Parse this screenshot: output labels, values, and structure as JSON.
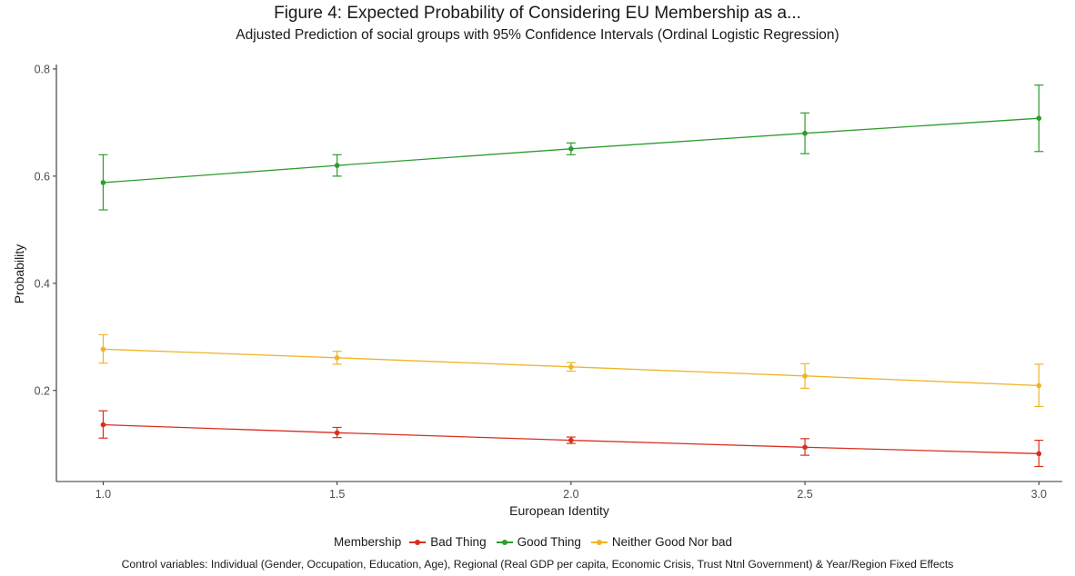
{
  "title": "Figure 4: Expected Probability of Considering EU Membership as a...",
  "subtitle": "Adjusted Prediction of social groups with 95% Confidence Intervals (Ordinal Logistic Regression)",
  "caption": "Control variables: Individual (Gender, Occupation, Education, Age), Regional (Real GDP per capita, Economic Crisis, Trust Ntnl Government) & Year/Region Fixed Effects",
  "legend": {
    "title": "Membership",
    "items": [
      {
        "label": "Bad Thing",
        "color": "#d7301f"
      },
      {
        "label": "Good Thing",
        "color": "#2e9c2e"
      },
      {
        "label": "Neither Good Nor bad",
        "color": "#f0b429"
      }
    ]
  },
  "chart_data": {
    "type": "line",
    "xlabel": "European Identity",
    "ylabel": "Probability",
    "x": [
      1.0,
      1.5,
      2.0,
      2.5,
      3.0
    ],
    "x_tick_labels": [
      "1.0",
      "1.5",
      "2.0",
      "2.5",
      "3.0"
    ],
    "y_ticks": [
      0.2,
      0.4,
      0.6,
      0.8
    ],
    "y_tick_labels": [
      "0.2",
      "0.4",
      "0.6",
      "0.8"
    ],
    "xlim": [
      0.9,
      3.05
    ],
    "ylim": [
      0.03,
      0.805
    ],
    "grid": false,
    "legend_position": "bottom",
    "series": [
      {
        "name": "Bad Thing",
        "color": "#d7301f",
        "values": [
          0.136,
          0.121,
          0.107,
          0.094,
          0.082
        ],
        "lower": [
          0.111,
          0.112,
          0.101,
          0.079,
          0.058
        ],
        "upper": [
          0.162,
          0.131,
          0.113,
          0.11,
          0.107
        ]
      },
      {
        "name": "Good Thing",
        "color": "#2e9c2e",
        "values": [
          0.588,
          0.62,
          0.651,
          0.68,
          0.708
        ],
        "lower": [
          0.537,
          0.6,
          0.64,
          0.642,
          0.646
        ],
        "upper": [
          0.64,
          0.64,
          0.662,
          0.718,
          0.77
        ]
      },
      {
        "name": "Neither Good Nor bad",
        "color": "#f0b429",
        "values": [
          0.277,
          0.261,
          0.244,
          0.227,
          0.209
        ],
        "lower": [
          0.251,
          0.249,
          0.236,
          0.204,
          0.17
        ],
        "upper": [
          0.304,
          0.273,
          0.252,
          0.25,
          0.249
        ]
      }
    ]
  }
}
